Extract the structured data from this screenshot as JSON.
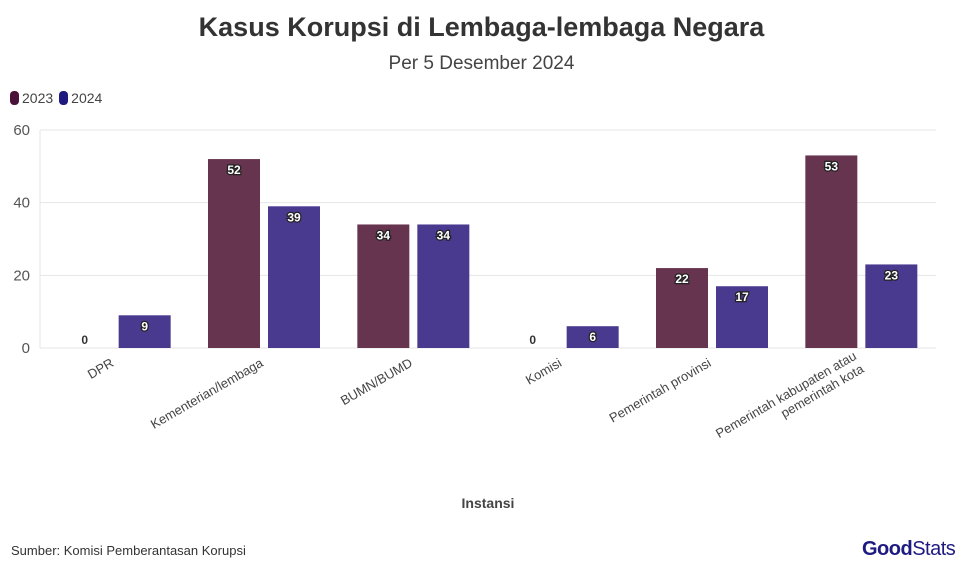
{
  "chart_data": {
    "type": "bar",
    "title": "Kasus Korupsi di Lembaga-lembaga Negara",
    "subtitle": "Per 5 Desember 2024",
    "xlabel": "Instansi",
    "ylabel": "",
    "ylim": [
      0,
      60
    ],
    "yticks": [
      "0",
      "20",
      "40",
      "60"
    ],
    "grid": true,
    "legend_position": "top-left",
    "categories": [
      "DPR",
      "Kementerian/lembaga",
      "BUMN/BUMD",
      "Komisi",
      "Pemerintah provinsi",
      "Pemerintah kabupaten atau pemerintah kota"
    ],
    "category_lines": [
      [
        "DPR"
      ],
      [
        "Kementerian/lembaga"
      ],
      [
        "BUMN/BUMD"
      ],
      [
        "Komisi"
      ],
      [
        "Pemerintah provinsi"
      ],
      [
        "Pemerintah kabupaten atau",
        "pemerintah kota"
      ]
    ],
    "series": [
      {
        "name": "2023",
        "values": [
          0,
          52,
          34,
          0,
          22,
          53
        ],
        "color": "#66344f",
        "legend_color": "#4a1238"
      },
      {
        "name": "2024",
        "values": [
          9,
          39,
          34,
          6,
          17,
          23
        ],
        "color": "#4a3a8f",
        "legend_color": "#1e1a80"
      }
    ]
  },
  "footer": {
    "source": "Sumber: Komisi Pemberantasan Korupsi",
    "logo": "GoodStats",
    "logo_bold": "Good",
    "logo_rest": "Stats"
  }
}
